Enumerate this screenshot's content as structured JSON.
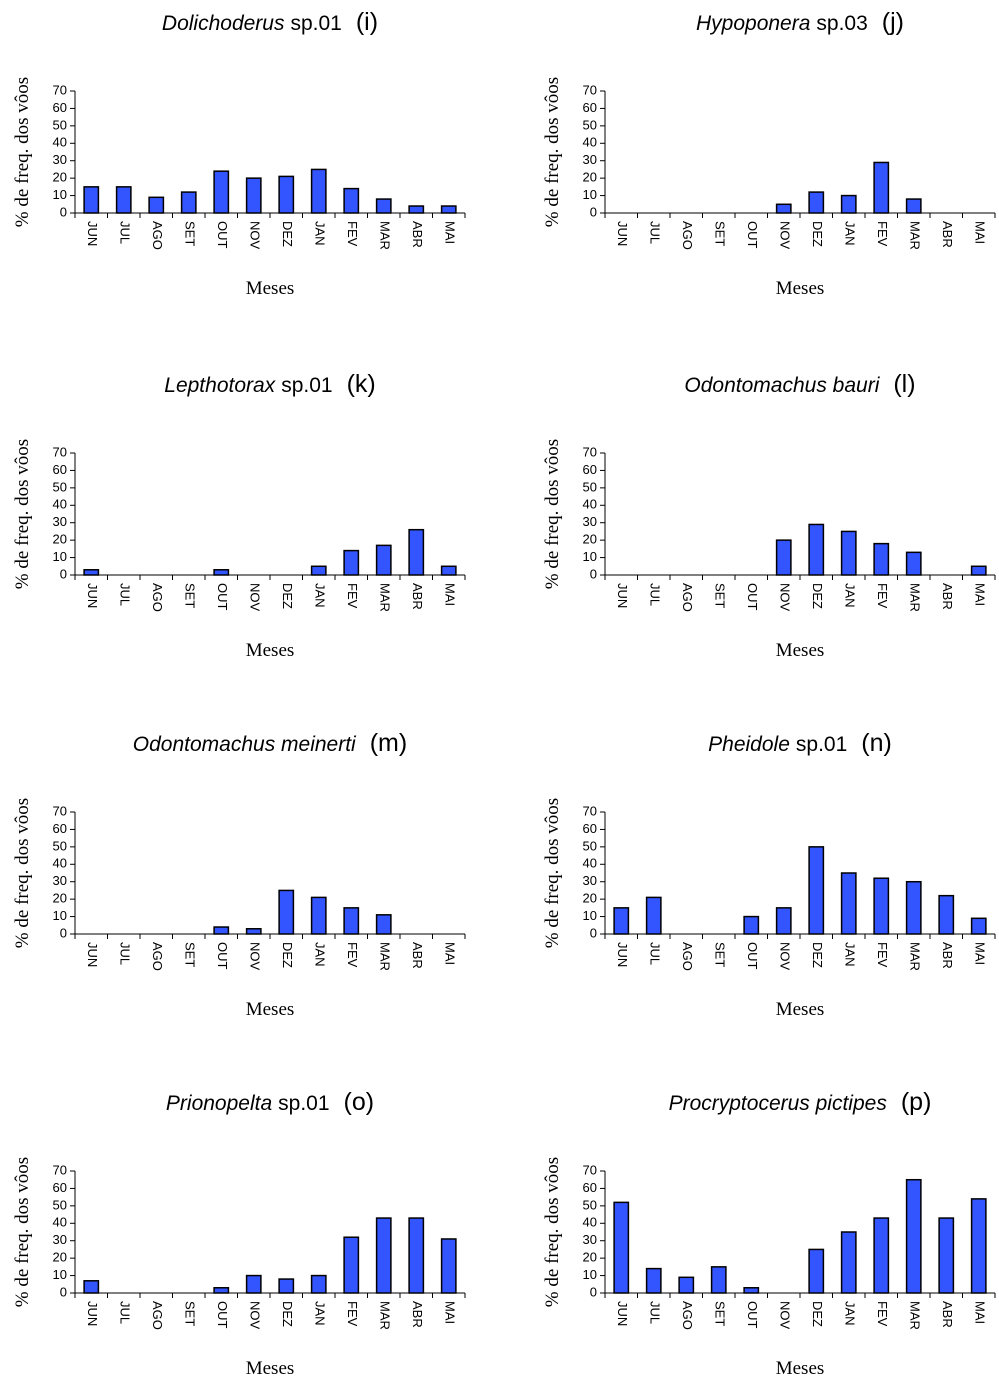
{
  "chart_data": [
    {
      "type": "bar",
      "title_italic": "Dolichoderus",
      "title": "sp.01",
      "panel_label": "(i)",
      "xlabel": "Meses",
      "ylabel": "% de freq. dos vôos",
      "categories": [
        "JUN",
        "JUL",
        "AGO",
        "SET",
        "OUT",
        "NOV",
        "DEZ",
        "JAN",
        "FEV",
        "MAR",
        "ABR",
        "MAI"
      ],
      "values": [
        15,
        15,
        9,
        12,
        24,
        20,
        21,
        25,
        14,
        8,
        4,
        4
      ],
      "color": "#3355ff",
      "ylim": [
        0,
        70
      ],
      "yticks": [
        0,
        10,
        20,
        30,
        40,
        50,
        60,
        70
      ]
    },
    {
      "type": "bar",
      "title_italic": "Hypoponera",
      "title": "sp.03",
      "panel_label": "(j)",
      "xlabel": "Meses",
      "ylabel": "% de freq. dos vôos",
      "categories": [
        "JUN",
        "JUL",
        "AGO",
        "SET",
        "OUT",
        "NOV",
        "DEZ",
        "JAN",
        "FEV",
        "MAR",
        "ABR",
        "MAI"
      ],
      "values": [
        0,
        0,
        0,
        0,
        0,
        5,
        12,
        10,
        29,
        8,
        0,
        0
      ],
      "color": "#3355ff",
      "ylim": [
        0,
        70
      ],
      "yticks": [
        0,
        10,
        20,
        30,
        40,
        50,
        60,
        70
      ]
    },
    {
      "type": "bar",
      "title_italic": "Lepthotorax",
      "title": "sp.01",
      "panel_label": "(k)",
      "xlabel": "Meses",
      "ylabel": "% de freq. dos vôos",
      "categories": [
        "JUN",
        "JUL",
        "AGO",
        "SET",
        "OUT",
        "NOV",
        "DEZ",
        "JAN",
        "FEV",
        "MAR",
        "ABR",
        "MAI"
      ],
      "values": [
        3,
        0,
        0,
        0,
        3,
        0,
        0,
        5,
        14,
        17,
        26,
        5
      ],
      "color": "#3355ff",
      "ylim": [
        0,
        70
      ],
      "yticks": [
        0,
        10,
        20,
        30,
        40,
        50,
        60,
        70
      ]
    },
    {
      "type": "bar",
      "title_italic": "Odontomachus bauri",
      "panel_label": "(l)",
      "xlabel": "Meses",
      "ylabel": "% de freq. dos vôos",
      "categories": [
        "JUN",
        "JUL",
        "AGO",
        "SET",
        "OUT",
        "NOV",
        "DEZ",
        "JAN",
        "FEV",
        "MAR",
        "ABR",
        "MAI"
      ],
      "values": [
        0,
        0,
        0,
        0,
        0,
        20,
        29,
        25,
        18,
        13,
        0,
        5
      ],
      "color": "#3355ff",
      "ylim": [
        0,
        70
      ],
      "yticks": [
        0,
        10,
        20,
        30,
        40,
        50,
        60,
        70
      ]
    },
    {
      "type": "bar",
      "title_italic": "Odontomachus meinerti",
      "panel_label": "(m)",
      "xlabel": "Meses",
      "ylabel": "% de freq. dos vôos",
      "categories": [
        "JUN",
        "JUL",
        "AGO",
        "SET",
        "OUT",
        "NOV",
        "DEZ",
        "JAN",
        "FEV",
        "MAR",
        "ABR",
        "MAI"
      ],
      "values": [
        0,
        0,
        0,
        0,
        4,
        3,
        25,
        21,
        15,
        11,
        0,
        0
      ],
      "color": "#3355ff",
      "ylim": [
        0,
        70
      ],
      "yticks": [
        0,
        10,
        20,
        30,
        40,
        50,
        60,
        70
      ]
    },
    {
      "type": "bar",
      "title_italic": "Pheidole",
      "title": "sp.01",
      "panel_label": "(n)",
      "xlabel": "Meses",
      "ylabel": "% de freq. dos vôos",
      "categories": [
        "JUN",
        "JUL",
        "AGO",
        "SET",
        "OUT",
        "NOV",
        "DEZ",
        "JAN",
        "FEV",
        "MAR",
        "ABR",
        "MAI"
      ],
      "values": [
        15,
        21,
        0,
        0,
        10,
        15,
        50,
        35,
        32,
        30,
        22,
        9
      ],
      "color": "#3355ff",
      "ylim": [
        0,
        70
      ],
      "yticks": [
        0,
        10,
        20,
        30,
        40,
        50,
        60,
        70
      ]
    },
    {
      "type": "bar",
      "title_italic": "Prionopelta",
      "title": "sp.01",
      "panel_label": "(o)",
      "xlabel": "Meses",
      "ylabel": "% de freq. dos vôos",
      "categories": [
        "JUN",
        "JUL",
        "AGO",
        "SET",
        "OUT",
        "NOV",
        "DEZ",
        "JAN",
        "FEV",
        "MAR",
        "ABR",
        "MAI"
      ],
      "values": [
        7,
        0,
        0,
        0,
        3,
        10,
        8,
        10,
        32,
        43,
        43,
        31
      ],
      "color": "#3355ff",
      "ylim": [
        0,
        70
      ],
      "yticks": [
        0,
        10,
        20,
        30,
        40,
        50,
        60,
        70
      ]
    },
    {
      "type": "bar",
      "title_italic": "Procryptocerus pictipes",
      "panel_label": "(p)",
      "xlabel": "Meses",
      "ylabel": "% de freq. dos vôos",
      "categories": [
        "JUN",
        "JUL",
        "AGO",
        "SET",
        "OUT",
        "NOV",
        "DEZ",
        "JAN",
        "FEV",
        "MAR",
        "ABR",
        "MAI"
      ],
      "values": [
        52,
        14,
        9,
        15,
        3,
        0,
        25,
        35,
        43,
        65,
        43,
        54
      ],
      "color": "#3355ff",
      "ylim": [
        0,
        70
      ],
      "yticks": [
        0,
        10,
        20,
        30,
        40,
        50,
        60,
        70
      ]
    }
  ]
}
